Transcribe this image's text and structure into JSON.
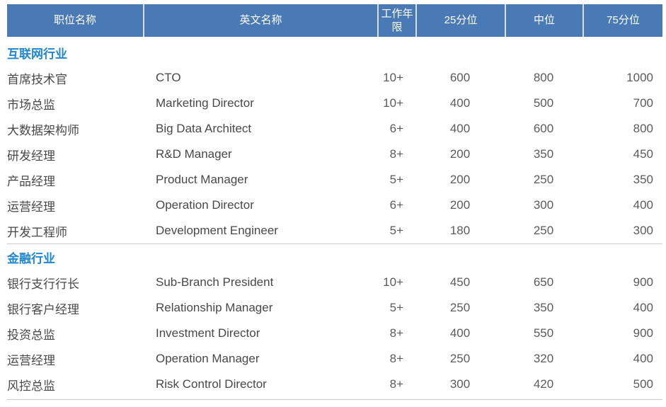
{
  "colors": {
    "header_bg": "#4A7AB5",
    "header_text": "#ffffff",
    "header_divider": "#D8E1F0",
    "section_title": "#1E87D2",
    "body_text": "#48484A",
    "numeric_text": "#5B5B5E",
    "rule": "#CACACC"
  },
  "table": {
    "columns": [
      {
        "key": "position",
        "label": "职位名称"
      },
      {
        "key": "english",
        "label": "英文名称"
      },
      {
        "key": "years",
        "label": "工作年限"
      },
      {
        "key": "p25",
        "label": "25分位"
      },
      {
        "key": "median",
        "label": "中位"
      },
      {
        "key": "p75",
        "label": "75分位"
      }
    ],
    "sections": [
      {
        "title": "互联网行业",
        "rows": [
          {
            "position": "首席技术官",
            "english": "CTO",
            "years": "10+",
            "p25": 600,
            "median": 800,
            "p75": 1000
          },
          {
            "position": "市场总监",
            "english": "Marketing Director",
            "years": "10+",
            "p25": 400,
            "median": 500,
            "p75": 700
          },
          {
            "position": "大数据架构师",
            "english": "Big Data Architect",
            "years": "6+",
            "p25": 400,
            "median": 600,
            "p75": 800
          },
          {
            "position": "研发经理",
            "english": "R&D Manager",
            "years": "8+",
            "p25": 200,
            "median": 350,
            "p75": 450
          },
          {
            "position": "产品经理",
            "english": "Product Manager",
            "years": "5+",
            "p25": 200,
            "median": 250,
            "p75": 350
          },
          {
            "position": "运营经理",
            "english": "Operation Director",
            "years": "6+",
            "p25": 200,
            "median": 300,
            "p75": 400
          },
          {
            "position": "开发工程师",
            "english": "Development Engineer",
            "years": "5+",
            "p25": 180,
            "median": 250,
            "p75": 300
          }
        ]
      },
      {
        "title": "金融行业",
        "rows": [
          {
            "position": "银行支行行长",
            "english": "Sub-Branch President",
            "years": "10+",
            "p25": 450,
            "median": 650,
            "p75": 900
          },
          {
            "position": "银行客户经理",
            "english": "Relationship Manager",
            "years": "5+",
            "p25": 250,
            "median": 350,
            "p75": 400
          },
          {
            "position": "投资总监",
            "english": "Investment Director",
            "years": "8+",
            "p25": 400,
            "median": 550,
            "p75": 900
          },
          {
            "position": "运营经理",
            "english": "Operation Manager",
            "years": "8+",
            "p25": 250,
            "median": 320,
            "p75": 400
          },
          {
            "position": "风控总监",
            "english": "Risk Control Director",
            "years": "8+",
            "p25": 300,
            "median": 420,
            "p75": 500
          }
        ]
      }
    ]
  }
}
